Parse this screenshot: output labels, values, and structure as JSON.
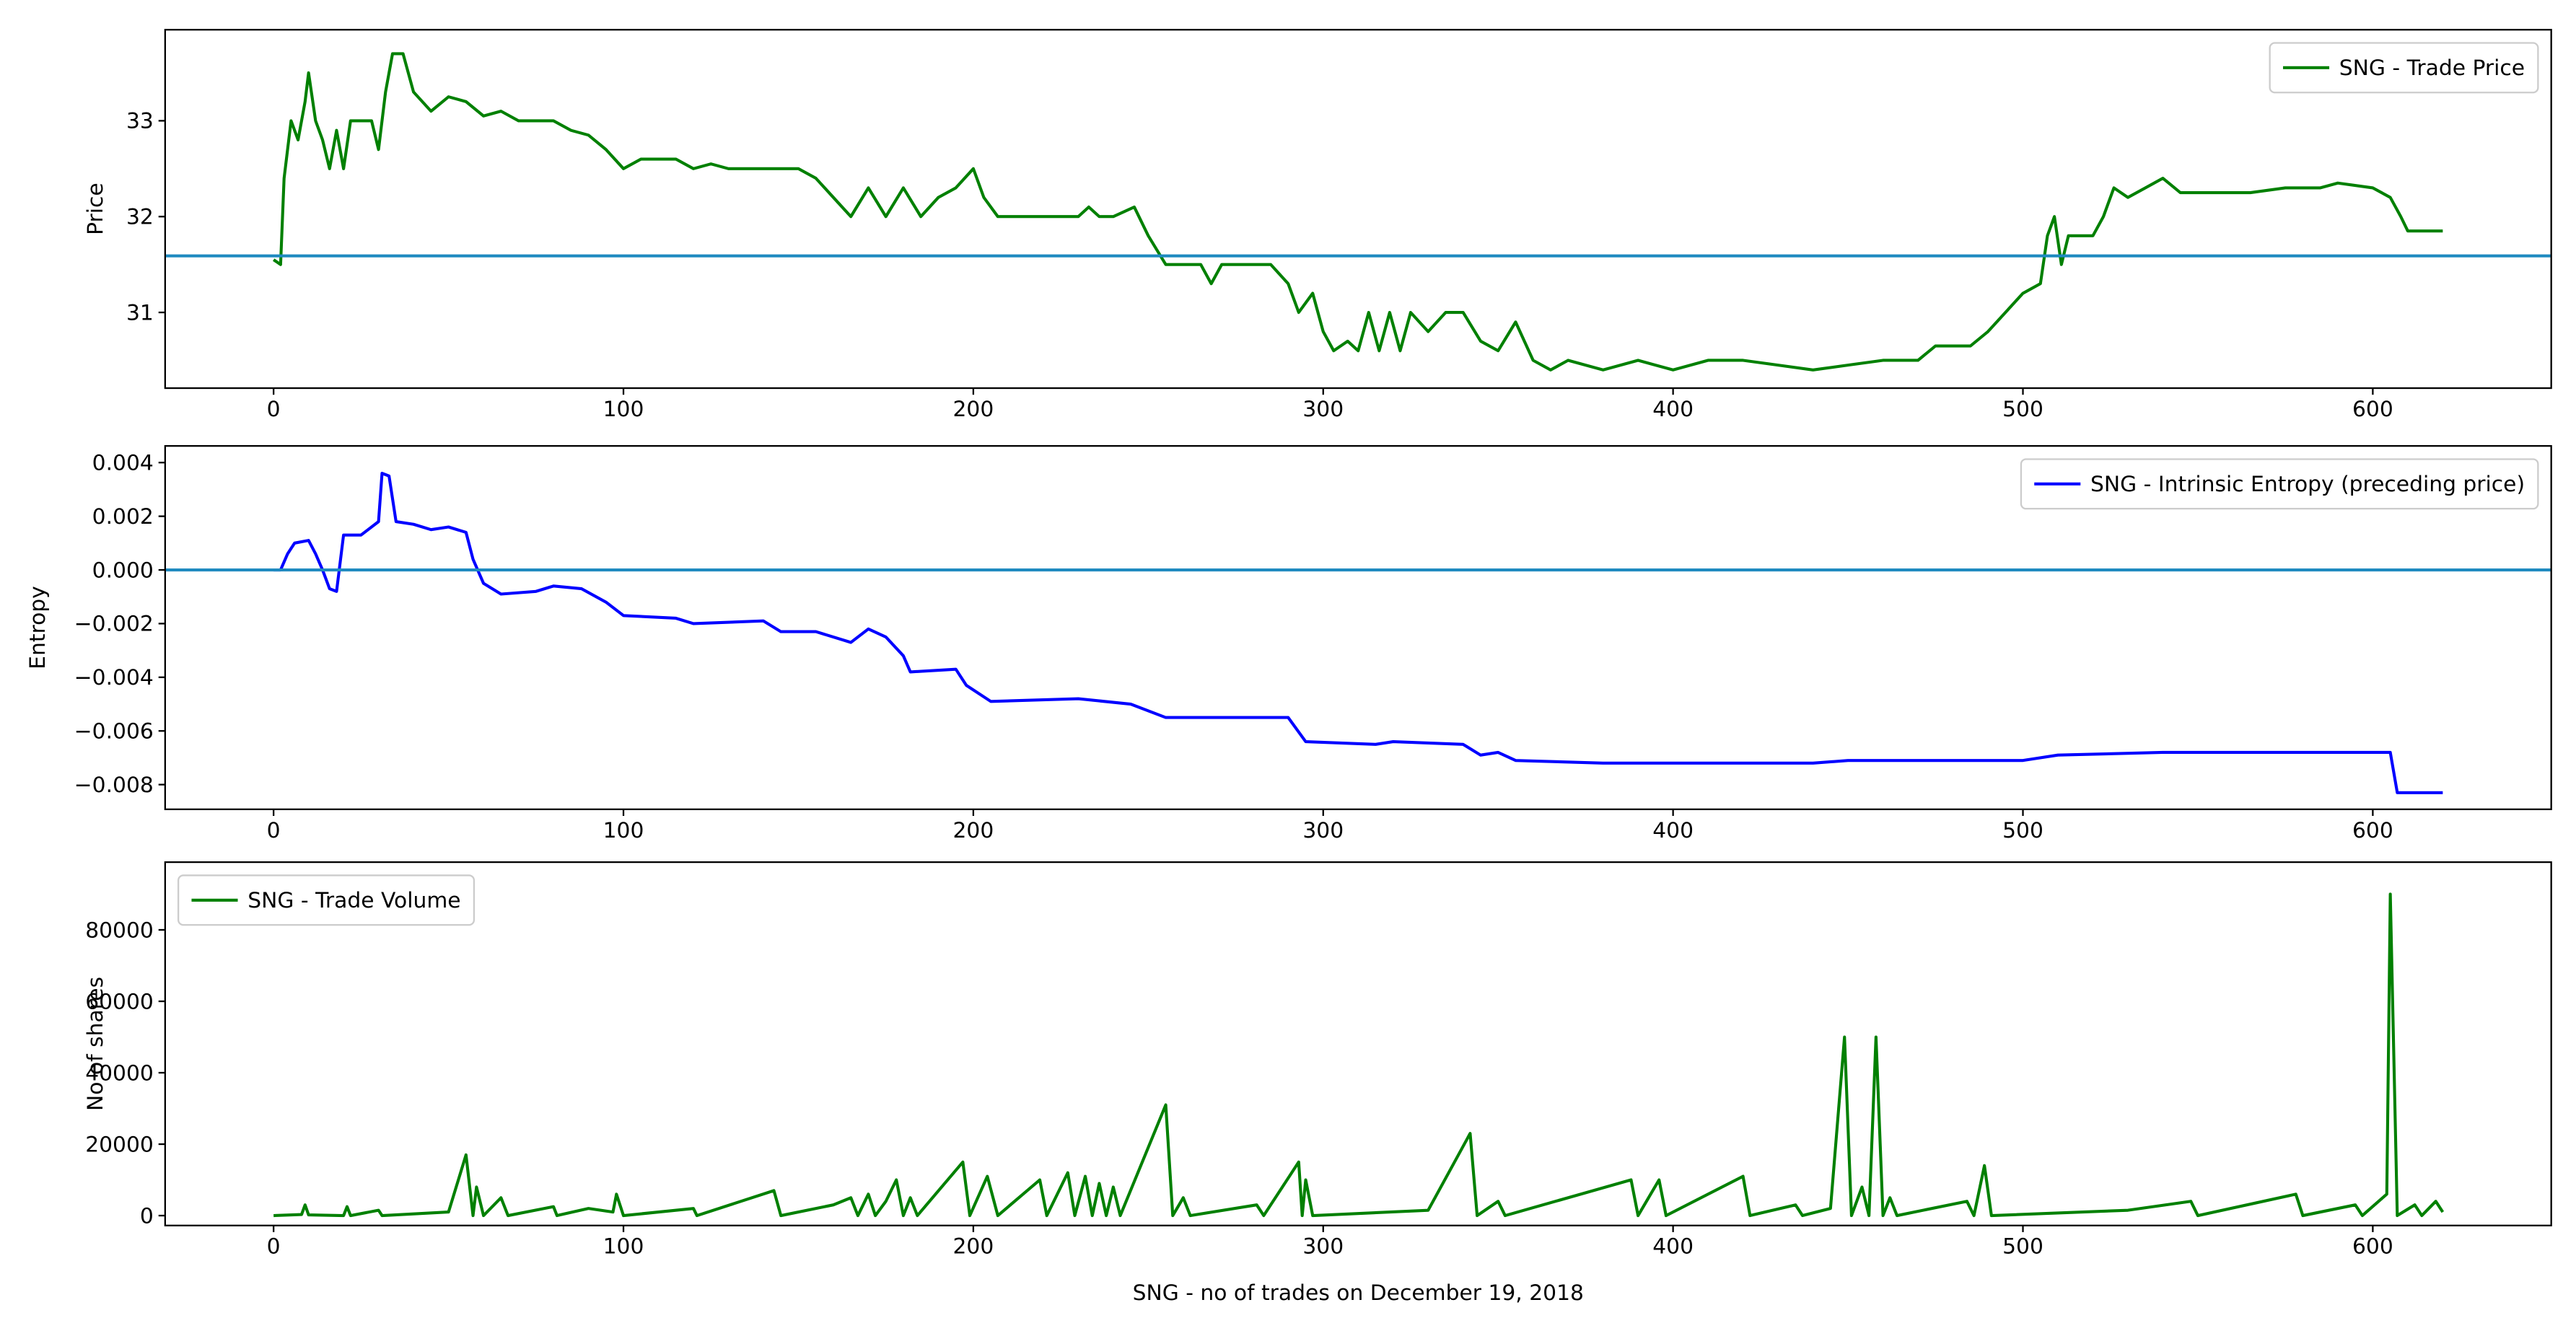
{
  "chart_data": [
    {
      "type": "line",
      "ylabel": "Price",
      "legend": "upper right",
      "hline": 31.59,
      "hline_color": "#1f8ac0",
      "xlim": [
        -31,
        651
      ],
      "xticks": [
        0,
        100,
        200,
        300,
        400,
        500,
        600
      ],
      "ylim": [
        30.21,
        33.95
      ],
      "yticks": [
        31,
        32,
        33
      ],
      "x": [
        0,
        2,
        3,
        5,
        7,
        9,
        10,
        12,
        14,
        16,
        18,
        20,
        22,
        28,
        30,
        32,
        34,
        37,
        40,
        45,
        50,
        55,
        60,
        65,
        70,
        80,
        85,
        90,
        95,
        100,
        105,
        115,
        120,
        125,
        130,
        140,
        150,
        155,
        160,
        165,
        170,
        175,
        180,
        185,
        190,
        195,
        200,
        203,
        207,
        212,
        220,
        230,
        233,
        236,
        240,
        246,
        250,
        255,
        260,
        265,
        268,
        271,
        280,
        285,
        290,
        293,
        297,
        300,
        303,
        307,
        310,
        313,
        316,
        319,
        322,
        325,
        330,
        335,
        340,
        345,
        350,
        355,
        360,
        365,
        370,
        380,
        390,
        400,
        410,
        420,
        430,
        440,
        450,
        460,
        470,
        475,
        480,
        485,
        490,
        495,
        500,
        505,
        507,
        509,
        511,
        513,
        520,
        523,
        526,
        530,
        535,
        540,
        545,
        555,
        565,
        575,
        585,
        590,
        600,
        605,
        608,
        610,
        620
      ],
      "series": [
        {
          "name": "SNG - Trade Price",
          "color": "#008000",
          "values": [
            31.55,
            31.5,
            32.4,
            33.0,
            32.8,
            33.2,
            33.5,
            33.0,
            32.8,
            32.5,
            32.9,
            32.5,
            33.0,
            33.0,
            32.7,
            33.3,
            33.7,
            33.7,
            33.3,
            33.1,
            33.25,
            33.2,
            33.05,
            33.1,
            33.0,
            33.0,
            32.9,
            32.85,
            32.7,
            32.5,
            32.6,
            32.6,
            32.5,
            32.55,
            32.5,
            32.5,
            32.5,
            32.4,
            32.2,
            32.0,
            32.3,
            32.0,
            32.3,
            32.0,
            32.2,
            32.3,
            32.5,
            32.2,
            32.0,
            32.0,
            32.0,
            32.0,
            32.1,
            32.0,
            32.0,
            32.1,
            31.8,
            31.5,
            31.5,
            31.5,
            31.3,
            31.5,
            31.5,
            31.5,
            31.3,
            31.0,
            31.2,
            30.8,
            30.6,
            30.7,
            30.6,
            31.0,
            30.6,
            31.0,
            30.6,
            31.0,
            30.8,
            31.0,
            31.0,
            30.7,
            30.6,
            30.9,
            30.5,
            30.4,
            30.5,
            30.4,
            30.5,
            30.4,
            30.5,
            30.5,
            30.45,
            30.4,
            30.45,
            30.5,
            30.5,
            30.65,
            30.65,
            30.65,
            30.8,
            31.0,
            31.2,
            31.3,
            31.8,
            32.0,
            31.5,
            31.8,
            31.8,
            32.0,
            32.3,
            32.2,
            32.3,
            32.4,
            32.25,
            32.25,
            32.25,
            32.3,
            32.3,
            32.35,
            32.3,
            32.2,
            32.0,
            31.85,
            31.85
          ]
        }
      ]
    },
    {
      "type": "line",
      "ylabel": "Entropy",
      "legend": "upper right",
      "hline": 0,
      "hline_color": "#1f8ac0",
      "xlim": [
        -31,
        651
      ],
      "xticks": [
        0,
        100,
        200,
        300,
        400,
        500,
        600
      ],
      "ylim": [
        -0.00892,
        0.00462
      ],
      "yticks": [
        {
          "value": -0.008,
          "label": "−0.008"
        },
        {
          "value": -0.006,
          "label": "−0.006"
        },
        {
          "value": -0.004,
          "label": "−0.004"
        },
        {
          "value": -0.002,
          "label": "−0.002"
        },
        {
          "value": 0,
          "label": "0.000"
        },
        {
          "value": 0.002,
          "label": "0.002"
        },
        {
          "value": 0.004,
          "label": "0.004"
        }
      ],
      "x": [
        0,
        2,
        4,
        6,
        10,
        12,
        14,
        16,
        18,
        20,
        25,
        28,
        30,
        31,
        33,
        35,
        40,
        45,
        50,
        55,
        57,
        60,
        65,
        75,
        80,
        88,
        95,
        100,
        115,
        120,
        140,
        145,
        155,
        165,
        170,
        175,
        180,
        182,
        195,
        198,
        205,
        230,
        245,
        255,
        290,
        295,
        315,
        320,
        340,
        345,
        350,
        355,
        380,
        420,
        440,
        450,
        500,
        510,
        540,
        600,
        605,
        607,
        620
      ],
      "series": [
        {
          "name": "SNG - Intrinsic Entropy (preceding price)",
          "color": "#0000ff",
          "values": [
            0,
            0,
            0.0006,
            0.001,
            0.0011,
            0.0006,
            0,
            -0.0007,
            -0.0008,
            0.0013,
            0.0013,
            0.0016,
            0.0018,
            0.0036,
            0.0035,
            0.0018,
            0.0017,
            0.0015,
            0.0016,
            0.0014,
            0.0004,
            -0.0005,
            -0.0009,
            -0.0008,
            -0.0006,
            -0.0007,
            -0.0012,
            -0.0017,
            -0.0018,
            -0.002,
            -0.0019,
            -0.0023,
            -0.0023,
            -0.0027,
            -0.0022,
            -0.0025,
            -0.0032,
            -0.0038,
            -0.0037,
            -0.0043,
            -0.0049,
            -0.0048,
            -0.005,
            -0.0055,
            -0.0055,
            -0.0064,
            -0.0065,
            -0.0064,
            -0.0065,
            -0.0069,
            -0.0068,
            -0.0071,
            -0.0072,
            -0.0072,
            -0.0072,
            -0.0071,
            -0.0071,
            -0.0069,
            -0.0068,
            -0.0068,
            -0.0068,
            -0.0083,
            -0.0083
          ]
        }
      ]
    },
    {
      "type": "line",
      "ylabel": "No of shares",
      "xlabel": "SNG - no of trades on December 19, 2018",
      "legend": "upper left",
      "xlim": [
        -31,
        651
      ],
      "xticks": [
        0,
        100,
        200,
        300,
        400,
        500,
        600
      ],
      "ylim": [
        -2775,
        98960
      ],
      "yticks": [
        0,
        20000,
        40000,
        60000,
        80000
      ],
      "x": [
        0,
        8,
        9,
        10,
        20,
        21,
        22,
        30,
        31,
        50,
        55,
        57,
        58,
        60,
        65,
        67,
        80,
        81,
        90,
        97,
        98,
        100,
        120,
        121,
        143,
        145,
        160,
        165,
        167,
        170,
        172,
        175,
        178,
        180,
        182,
        184,
        197,
        199,
        204,
        207,
        219,
        221,
        227,
        229,
        232,
        234,
        236,
        238,
        240,
        242,
        255,
        257,
        260,
        262,
        281,
        283,
        293,
        294,
        295,
        297,
        330,
        342,
        344,
        350,
        352,
        388,
        390,
        396,
        398,
        420,
        422,
        435,
        437,
        445,
        449,
        451,
        454,
        456,
        458,
        460,
        462,
        464,
        484,
        486,
        489,
        491,
        530,
        548,
        550,
        578,
        580,
        595,
        597,
        604,
        605,
        607,
        612,
        614,
        618,
        620
      ],
      "series": [
        {
          "name": "SNG - Trade Volume",
          "color": "#008000",
          "values": [
            0,
            300,
            3000,
            200,
            0,
            2500,
            0,
            1500,
            0,
            1000,
            17000,
            0,
            8000,
            0,
            5000,
            0,
            2500,
            0,
            2000,
            1000,
            6000,
            0,
            2000,
            0,
            7000,
            0,
            3000,
            5000,
            0,
            6000,
            0,
            4000,
            10000,
            0,
            5000,
            0,
            15000,
            0,
            11000,
            0,
            10000,
            0,
            12000,
            0,
            11000,
            0,
            9000,
            0,
            8000,
            0,
            31000,
            0,
            5000,
            0,
            3000,
            0,
            15000,
            0,
            10000,
            0,
            1500,
            23000,
            0,
            4000,
            0,
            10000,
            0,
            10000,
            0,
            11000,
            0,
            3000,
            0,
            2000,
            50000,
            0,
            8000,
            0,
            50000,
            0,
            5000,
            0,
            4000,
            0,
            14000,
            0,
            1500,
            4000,
            0,
            6000,
            0,
            3000,
            0,
            6000,
            90000,
            0,
            3000,
            0,
            4000,
            1000
          ]
        }
      ]
    }
  ]
}
